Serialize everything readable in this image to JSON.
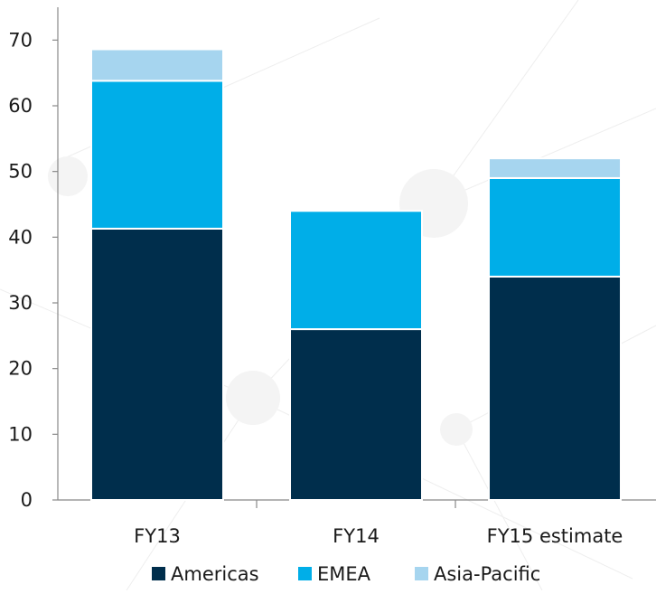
{
  "chart_data": {
    "type": "bar",
    "stacked": true,
    "categories": [
      "FY13",
      "FY14",
      "FY15 estimate"
    ],
    "series": [
      {
        "name": "Americas",
        "values": [
          41.3,
          26,
          34
        ],
        "color": "#002e4c"
      },
      {
        "name": "EMEA",
        "values": [
          22.5,
          18,
          15
        ],
        "color": "#00aee8"
      },
      {
        "name": "Asia-Pacific",
        "values": [
          4.8,
          0,
          3
        ],
        "color": "#a6d5ef"
      }
    ],
    "y_ticks": [
      "0",
      "10",
      "20",
      "30",
      "40",
      "50",
      "60",
      "70"
    ],
    "ylim": [
      0,
      75
    ],
    "grid": false,
    "legend_position": "bottom"
  }
}
